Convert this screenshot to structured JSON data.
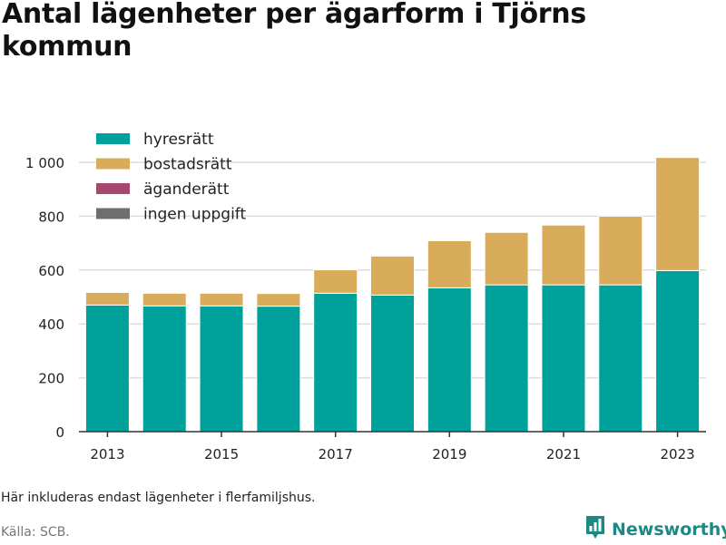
{
  "chart_data": {
    "type": "bar",
    "stacked": true,
    "title": "Antal lägenheter per ägarform i Tjörns kommun",
    "categories": [
      "2013",
      "2014",
      "2015",
      "2016",
      "2017",
      "2018",
      "2019",
      "2020",
      "2021",
      "2022",
      "2023"
    ],
    "x_tick_labels": [
      "2013",
      "2015",
      "2017",
      "2019",
      "2021",
      "2023"
    ],
    "y_tick_labels": [
      "0",
      "200",
      "400",
      "600",
      "800",
      "1 000"
    ],
    "y_ticks": [
      0,
      200,
      400,
      600,
      800,
      1000
    ],
    "ylim": [
      0,
      1080
    ],
    "grid": true,
    "legend_placement": "top-left",
    "series": [
      {
        "name": "hyresrätt",
        "color": "#00a19a",
        "values": [
          470,
          467,
          467,
          466,
          514,
          507,
          534,
          545,
          545,
          545,
          598
        ]
      },
      {
        "name": "bostadsrätt",
        "color": "#d9ac5b",
        "values": [
          47,
          47,
          47,
          47,
          87,
          145,
          175,
          195,
          222,
          255,
          420
        ]
      },
      {
        "name": "äganderätt",
        "color": "#a64673",
        "values": [
          0,
          0,
          0,
          0,
          0,
          0,
          0,
          0,
          0,
          0,
          0
        ]
      },
      {
        "name": "ingen uppgift",
        "color": "#6e6e6e",
        "values": [
          0,
          0,
          0,
          0,
          0,
          0,
          0,
          0,
          0,
          0,
          0
        ]
      }
    ]
  },
  "note": "Här inkluderas endast lägenheter i flerfamiljshus.",
  "source": "Källa: SCB.",
  "brand": {
    "name": "Newsworthy",
    "icon": "bar-chart-logo-icon",
    "color": "#1b8a85"
  }
}
